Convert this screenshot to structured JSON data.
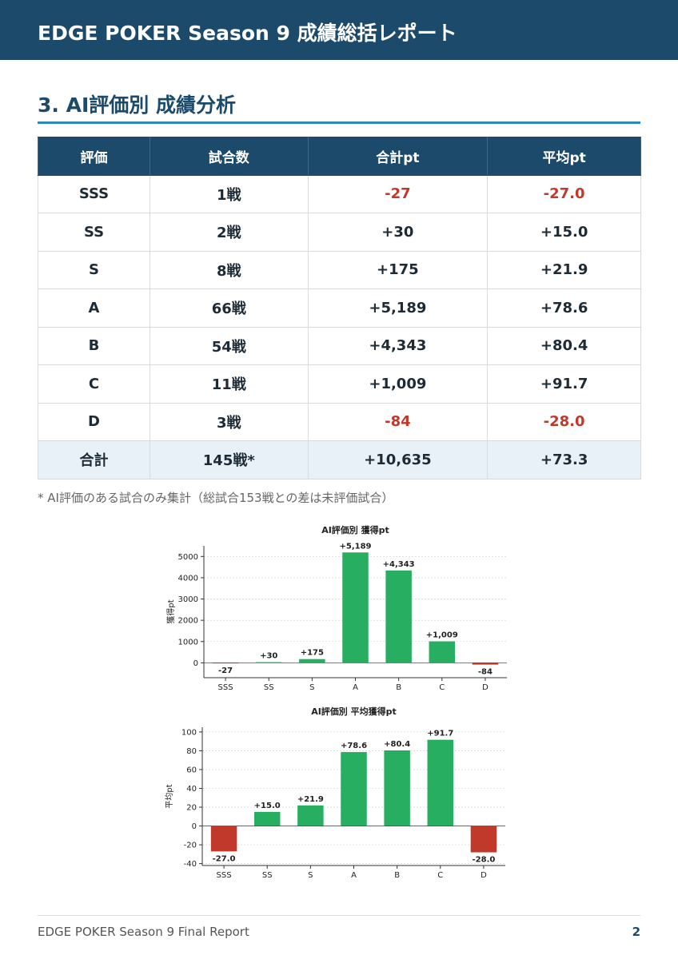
{
  "header": {
    "title": "EDGE POKER Season 9 成績総括レポート"
  },
  "section": {
    "title": "3. AI評価別 成績分析"
  },
  "table": {
    "columns": [
      "評価",
      "試合数",
      "合計pt",
      "平均pt"
    ],
    "rows": [
      [
        "SSS",
        "1戦",
        "-27",
        "-27.0"
      ],
      [
        "SS",
        "2戦",
        "+30",
        "+15.0"
      ],
      [
        "S",
        "8戦",
        "+175",
        "+21.9"
      ],
      [
        "A",
        "66戦",
        "+5,189",
        "+78.6"
      ],
      [
        "B",
        "54戦",
        "+4,343",
        "+80.4"
      ],
      [
        "C",
        "11戦",
        "+1,009",
        "+91.7"
      ],
      [
        "D",
        "3戦",
        "-84",
        "-28.0"
      ]
    ],
    "total": [
      "合計",
      "145戦*",
      "+10,635",
      "+73.3"
    ],
    "negative_color": "#c0392b"
  },
  "note": "* AI評価のある試合のみ集計（総試合153戦との差は未評価試合）",
  "chart_data": [
    {
      "type": "bar",
      "title": "AI評価別 獲得pt",
      "y_label": "獲得pt",
      "categories": [
        "SSS",
        "SS",
        "S",
        "A",
        "B",
        "C",
        "D"
      ],
      "values": [
        -27,
        30,
        175,
        5189,
        4343,
        1009,
        -84
      ],
      "value_labels": [
        "-27",
        "+30",
        "+175",
        "+5,189",
        "+4,343",
        "+1,009",
        "-84"
      ],
      "color": "#27ae60",
      "negative_color": "#c0392b",
      "ylim": [
        -700,
        5500
      ],
      "yticks": [
        0,
        1000,
        2000,
        3000,
        4000,
        5000
      ],
      "grid": true
    },
    {
      "type": "bar",
      "title": "AI評価別 平均獲得pt",
      "y_label": "平均pt",
      "categories": [
        "SSS",
        "SS",
        "S",
        "A",
        "B",
        "C",
        "D"
      ],
      "values": [
        -27.0,
        15.0,
        21.9,
        78.6,
        80.4,
        91.7,
        -28.0
      ],
      "value_labels": [
        "-27.0",
        "+15.0",
        "+21.9",
        "+78.6",
        "+80.4",
        "+91.7",
        "-28.0"
      ],
      "color": "#27ae60",
      "negative_color": "#c0392b",
      "ylim": [
        -42,
        105
      ],
      "yticks": [
        -40,
        -20,
        0,
        20,
        40,
        60,
        80,
        100
      ],
      "grid": true
    }
  ],
  "footer": {
    "text": "EDGE POKER Season 9 Final Report",
    "page": "2"
  }
}
